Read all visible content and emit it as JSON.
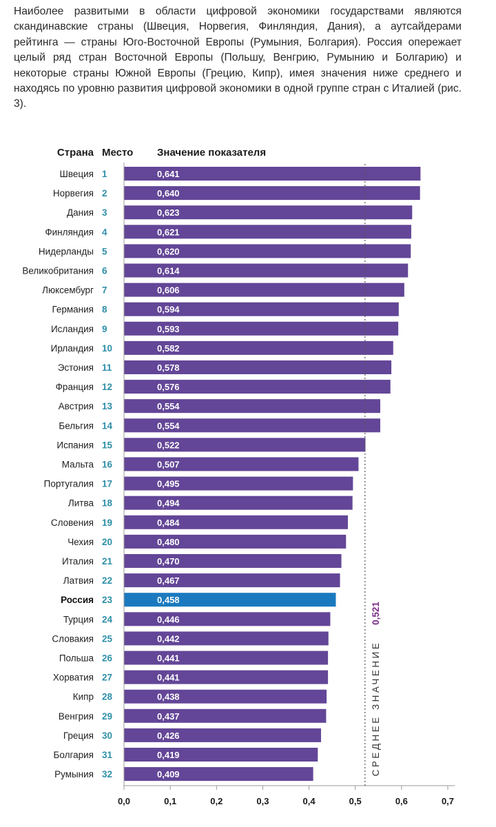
{
  "intro_text": "Наиболее развитыми в области цифровой экономики государствами являются скандинавские страны (Швеция, Норвегия, Финляндия, Дания), а аутсайдерами рейтинга — страны Юго-Восточной Европы (Румыния, Болгария). Россия опережает целый ряд стран Восточной Европы (Польшу, Венгрию, Румынию и Болгарию) и некоторые страны Южной Европы (Грецию, Кипр), имея значения ниже среднего и находясь по уровню развития цифровой экономики в одной группе стран с Италией (рис. 3).",
  "headers": {
    "country": "Страна",
    "rank": "Место",
    "value": "Значение показателя"
  },
  "colors": {
    "bar": "#634697",
    "highlight": "#1b7abf",
    "rank": "#2e8fa8",
    "average_value": "#7a2a8a"
  },
  "chart_data": {
    "type": "bar",
    "orientation": "horizontal",
    "highlight": "Россия",
    "rows": [
      {
        "country": "Швеция",
        "rank": "1",
        "value": 0.641,
        "label": "0,641"
      },
      {
        "country": "Норвегия",
        "rank": "2",
        "value": 0.64,
        "label": "0,640"
      },
      {
        "country": "Дания",
        "rank": "3",
        "value": 0.623,
        "label": "0,623"
      },
      {
        "country": "Финляндия",
        "rank": "4",
        "value": 0.621,
        "label": "0,621"
      },
      {
        "country": "Нидерланды",
        "rank": "5",
        "value": 0.62,
        "label": "0,620"
      },
      {
        "country": "Великобритания",
        "rank": "6",
        "value": 0.614,
        "label": "0,614"
      },
      {
        "country": "Люксембург",
        "rank": "7",
        "value": 0.606,
        "label": "0,606"
      },
      {
        "country": "Германия",
        "rank": "8",
        "value": 0.594,
        "label": "0,594"
      },
      {
        "country": "Исландия",
        "rank": "9",
        "value": 0.593,
        "label": "0,593"
      },
      {
        "country": "Ирландия",
        "rank": "10",
        "value": 0.582,
        "label": "0,582"
      },
      {
        "country": "Эстония",
        "rank": "11",
        "value": 0.578,
        "label": "0,578"
      },
      {
        "country": "Франция",
        "rank": "12",
        "value": 0.576,
        "label": "0,576"
      },
      {
        "country": "Австрия",
        "rank": "13",
        "value": 0.554,
        "label": "0,554"
      },
      {
        "country": "Бельгия",
        "rank": "14",
        "value": 0.554,
        "label": "0,554"
      },
      {
        "country": "Испания",
        "rank": "15",
        "value": 0.522,
        "label": "0,522"
      },
      {
        "country": "Мальта",
        "rank": "16",
        "value": 0.507,
        "label": "0,507"
      },
      {
        "country": "Португалия",
        "rank": "17",
        "value": 0.495,
        "label": "0,495"
      },
      {
        "country": "Литва",
        "rank": "18",
        "value": 0.494,
        "label": "0,494"
      },
      {
        "country": "Словения",
        "rank": "19",
        "value": 0.484,
        "label": "0,484"
      },
      {
        "country": "Чехия",
        "rank": "20",
        "value": 0.48,
        "label": "0,480"
      },
      {
        "country": "Италия",
        "rank": "21",
        "value": 0.47,
        "label": "0,470"
      },
      {
        "country": "Латвия",
        "rank": "22",
        "value": 0.467,
        "label": "0,467"
      },
      {
        "country": "Россия",
        "rank": "23",
        "value": 0.458,
        "label": "0,458"
      },
      {
        "country": "Турция",
        "rank": "24",
        "value": 0.446,
        "label": "0,446"
      },
      {
        "country": "Словакия",
        "rank": "25",
        "value": 0.442,
        "label": "0,442"
      },
      {
        "country": "Польша",
        "rank": "26",
        "value": 0.441,
        "label": "0,441"
      },
      {
        "country": "Хорватия",
        "rank": "27",
        "value": 0.441,
        "label": "0,441"
      },
      {
        "country": "Кипр",
        "rank": "28",
        "value": 0.438,
        "label": "0,438"
      },
      {
        "country": "Венгрия",
        "rank": "29",
        "value": 0.437,
        "label": "0,437"
      },
      {
        "country": "Греция",
        "rank": "30",
        "value": 0.426,
        "label": "0,426"
      },
      {
        "country": "Болгария",
        "rank": "31",
        "value": 0.419,
        "label": "0,419"
      },
      {
        "country": "Румыния",
        "rank": "32",
        "value": 0.409,
        "label": "0,409"
      }
    ],
    "average": {
      "value": 0.521,
      "label": "0,521",
      "text": "СРЕДНЕЕ ЗНАЧЕНИЕ"
    },
    "xlim": [
      0,
      0.7
    ],
    "ticks": [
      {
        "value": 0.0,
        "label": "0,0"
      },
      {
        "value": 0.1,
        "label": "0,1"
      },
      {
        "value": 0.2,
        "label": "0,2"
      },
      {
        "value": 0.3,
        "label": "0,3"
      },
      {
        "value": 0.4,
        "label": "0,4"
      },
      {
        "value": 0.5,
        "label": "0,5"
      },
      {
        "value": 0.6,
        "label": "0,6"
      },
      {
        "value": 0.7,
        "label": "0,7"
      }
    ],
    "grid": false
  }
}
